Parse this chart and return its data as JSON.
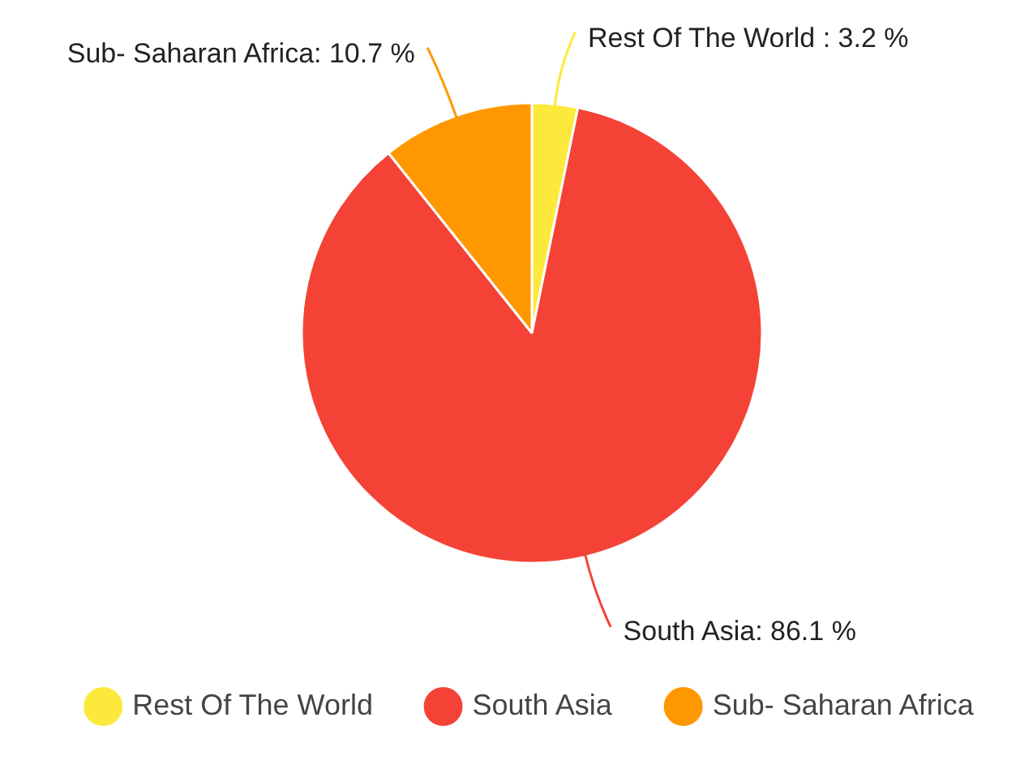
{
  "chart_data": {
    "type": "pie",
    "categories": [
      "Rest Of The World",
      "South Asia",
      "Sub- Saharan Africa"
    ],
    "values": [
      3.2,
      86.1,
      10.7
    ],
    "colors": [
      "#fde93b",
      "#f44336",
      "#ff9800"
    ],
    "value_labels": [
      "Rest Of The World : 3.2 %",
      "South Asia: 86.1 %",
      "Sub- Saharan Africa: 10.7 %"
    ],
    "legend": "bottom"
  }
}
